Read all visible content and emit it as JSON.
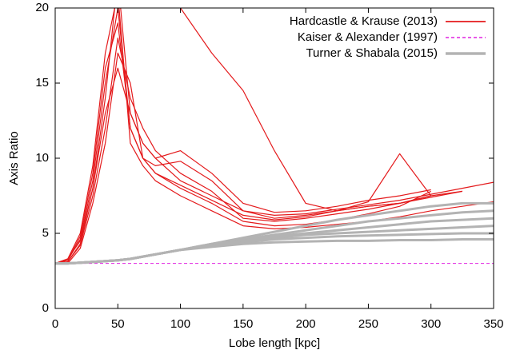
{
  "chart_data": {
    "type": "line",
    "xlabel": "Lobe length [kpc]",
    "ylabel": "Axis Ratio",
    "x": [
      0,
      10,
      20,
      30,
      40,
      50,
      60,
      70,
      80,
      100,
      125,
      150,
      175,
      200,
      225,
      250,
      275,
      300,
      325,
      350
    ],
    "xlim": [
      0,
      350
    ],
    "ylim": [
      0,
      20
    ],
    "xticks": [
      0,
      50,
      100,
      150,
      200,
      250,
      300,
      350
    ],
    "yticks": [
      0,
      5,
      10,
      15,
      20
    ],
    "legend": "upper right",
    "series": [
      {
        "name": "Hardcastle & Krause (2013)",
        "color": "#e41a1c",
        "dash": "solid",
        "width": 1.2,
        "lines": [
          [
            3,
            3.3,
            4.5,
            8,
            14,
            22,
            13,
            11,
            10,
            8.5,
            7.5,
            6.5,
            6.2,
            6.3,
            6.6,
            6.9,
            7.2,
            7.6,
            8.0,
            8.4
          ],
          [
            3,
            3.1,
            4.2,
            7.5,
            12,
            18,
            14,
            12,
            10.5,
            9,
            7.8,
            6,
            5.8,
            6,
            6.3,
            6.6,
            7,
            7.5,
            null,
            null
          ],
          [
            3,
            3.2,
            4.8,
            9,
            16,
            19,
            12,
            10,
            9,
            8,
            7,
            5.8,
            5.5,
            5.6,
            5.9,
            6.3,
            6.8,
            7.8,
            null,
            null
          ],
          [
            3,
            3,
            4,
            7,
            11,
            17,
            15,
            10,
            9.5,
            9.8,
            8.5,
            6.5,
            6,
            6.2,
            6.5,
            6.8,
            7,
            7.4,
            7.8,
            null
          ],
          [
            3,
            3.3,
            5,
            9.5,
            17,
            21,
            11,
            9.5,
            8.5,
            7.5,
            6.5,
            5.5,
            5.3,
            5.4,
            5.6,
            5.8,
            6.1,
            6.5,
            6.8,
            7.1
          ],
          [
            3,
            3.1,
            4.3,
            8,
            13,
            16,
            13,
            11,
            10,
            10.5,
            9,
            7,
            6.4,
            6.5,
            6.8,
            7.2,
            7.5,
            7.9,
            null,
            null
          ],
          [
            3,
            3.2,
            4.6,
            8.5,
            15,
            20,
            12,
            10,
            9,
            8.2,
            7.2,
            6.2,
            5.9,
            6.1,
            6.5,
            7.1,
            10.3,
            7.5,
            null,
            null
          ],
          [
            null,
            null,
            null,
            null,
            null,
            45,
            38,
            32,
            27,
            20,
            17,
            14.5,
            10.5,
            7,
            6.5,
            6.8,
            7,
            7.5,
            7.8,
            null
          ]
        ]
      },
      {
        "name": "Kaiser & Alexander (1997)",
        "color": "#e020e0",
        "dash": "dashed",
        "width": 1,
        "lines": [
          [
            3,
            3,
            3,
            3,
            3,
            3,
            3,
            3,
            3,
            3,
            3,
            3,
            3,
            3,
            3,
            3,
            3,
            3,
            3,
            3
          ]
        ]
      },
      {
        "name": "Turner & Shabala (2015)",
        "color": "#b3b3b3",
        "dash": "solid",
        "width": 3,
        "lines": [
          [
            3,
            3,
            3.05,
            3.1,
            3.15,
            3.2,
            3.3,
            3.45,
            3.6,
            3.9,
            4.3,
            4.7,
            5.1,
            5.5,
            5.9,
            6.2,
            6.5,
            6.8,
            7.0,
            7.0
          ],
          [
            3,
            3,
            3.05,
            3.1,
            3.15,
            3.2,
            3.3,
            3.45,
            3.6,
            3.9,
            4.3,
            4.6,
            4.9,
            5.2,
            5.5,
            5.8,
            6.0,
            6.2,
            6.4,
            6.5
          ],
          [
            3,
            3,
            3.05,
            3.1,
            3.15,
            3.2,
            3.3,
            3.45,
            3.6,
            3.9,
            4.2,
            4.5,
            4.8,
            5.0,
            5.2,
            5.4,
            5.6,
            5.8,
            5.9,
            6.0
          ],
          [
            3,
            3,
            3.05,
            3.1,
            3.15,
            3.2,
            3.3,
            3.45,
            3.6,
            3.9,
            4.2,
            4.5,
            4.7,
            4.9,
            5.0,
            5.1,
            5.2,
            5.3,
            5.4,
            5.5
          ],
          [
            3,
            3,
            3.05,
            3.1,
            3.15,
            3.2,
            3.3,
            3.45,
            3.6,
            3.9,
            4.2,
            4.4,
            4.6,
            4.7,
            4.8,
            4.85,
            4.9,
            4.95,
            5.0,
            5.0
          ],
          [
            3,
            3,
            3.05,
            3.1,
            3.15,
            3.2,
            3.3,
            3.45,
            3.6,
            3.9,
            4.1,
            4.3,
            4.4,
            4.45,
            4.5,
            4.5,
            4.55,
            4.55,
            4.6,
            4.6
          ]
        ]
      }
    ]
  }
}
